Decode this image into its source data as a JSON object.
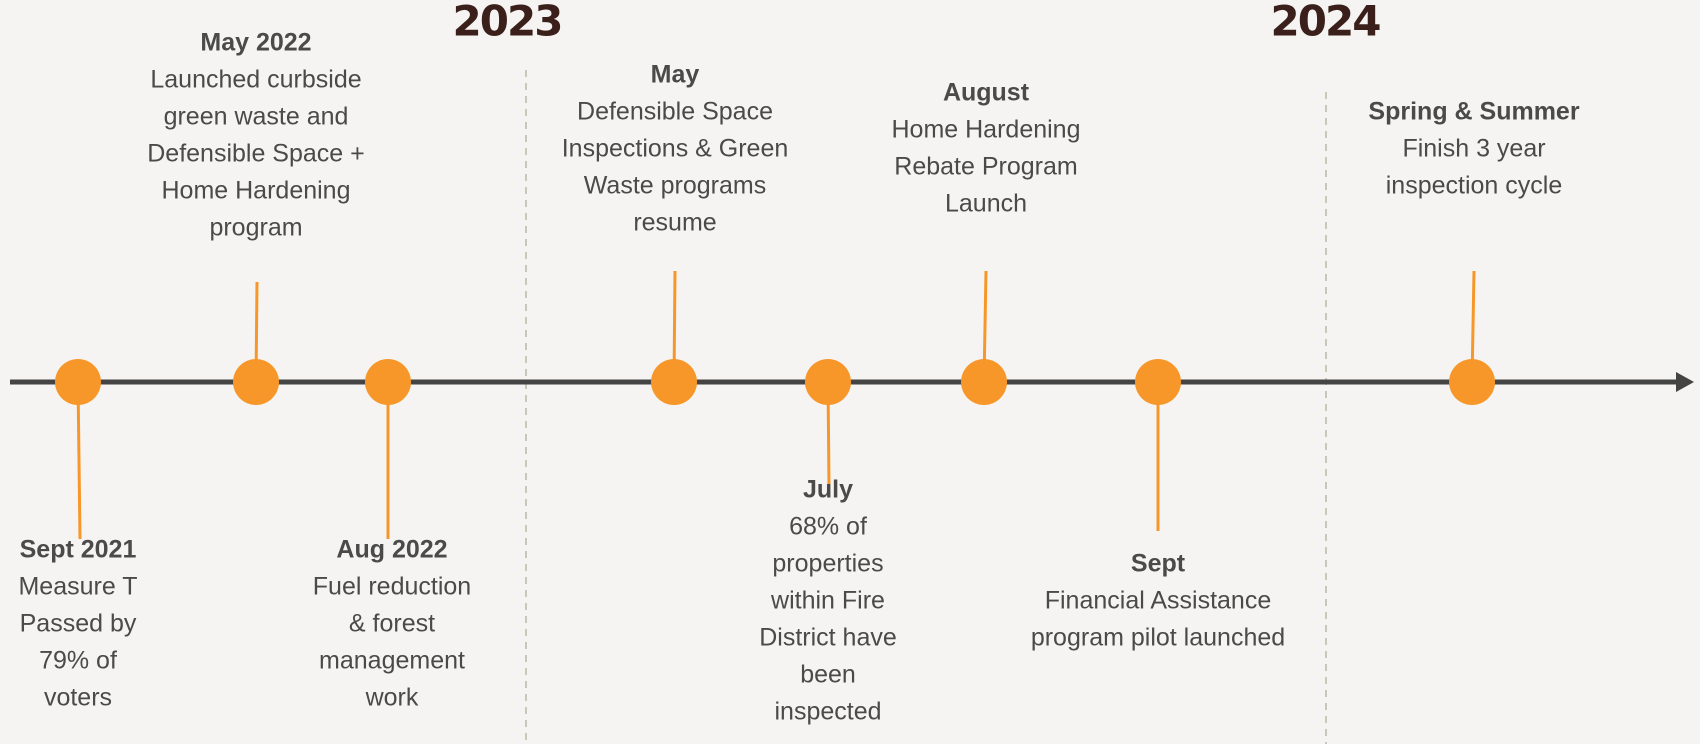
{
  "years": [
    "2023",
    "2024"
  ],
  "events": [
    {
      "title": "Sept 2021",
      "lines": [
        "Measure T",
        "Passed by",
        "79% of",
        "voters"
      ]
    },
    {
      "title": "May 2022",
      "lines": [
        "Launched  curbside",
        "green waste and",
        "Defensible Space +",
        "Home Hardening",
        "program"
      ]
    },
    {
      "title": "Aug 2022",
      "lines": [
        "Fuel reduction",
        "& forest",
        "management",
        "work"
      ]
    },
    {
      "title": "May",
      "lines": [
        "Defensible Space",
        "Inspections & Green",
        "Waste programs",
        "resume"
      ]
    },
    {
      "title": "July",
      "lines": [
        "68% of",
        "properties",
        "within Fire",
        "District have",
        "been",
        "inspected"
      ]
    },
    {
      "title": "August",
      "lines": [
        "Home Hardening",
        "Rebate Program",
        "Launch"
      ]
    },
    {
      "title": "Sept",
      "lines": [
        "Financial  Assistance",
        "program pilot launched"
      ]
    },
    {
      "title": "Spring & Summer",
      "lines": [
        "Finish 3 year",
        "inspection cycle"
      ]
    }
  ]
}
